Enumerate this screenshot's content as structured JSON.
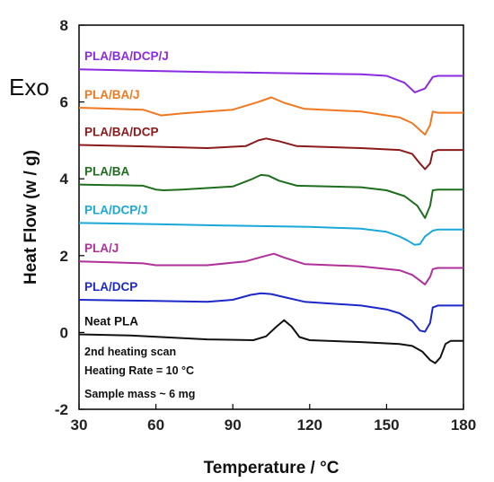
{
  "chart_data": {
    "type": "line",
    "xlabel": "Temperature / °C",
    "ylabel": "Heat Flow (w / g)",
    "xlim": [
      30,
      180
    ],
    "ylim": [
      -2,
      8
    ],
    "xticks": [
      "30",
      "60",
      "90",
      "120",
      "150",
      "180"
    ],
    "yticks": [
      "-2",
      "0",
      "2",
      "4",
      "6",
      "8"
    ],
    "grid": false,
    "exo_label": "Exo",
    "annotations": [
      "2nd heating scan",
      "Heating Rate = 10  °C",
      "Sample mass ~ 6 mg"
    ],
    "series": [
      {
        "name": "PLA/BA/DCP/J",
        "color": "#8a2be2",
        "x": [
          30,
          50,
          80,
          110,
          140,
          150,
          157,
          161,
          165,
          168,
          170,
          180
        ],
        "y": [
          6.85,
          6.82,
          6.78,
          6.75,
          6.72,
          6.68,
          6.5,
          6.25,
          6.35,
          6.65,
          6.68,
          6.68
        ]
      },
      {
        "name": "PLA/BA/J",
        "color": "#f07820",
        "x": [
          30,
          55,
          62,
          70,
          90,
          100,
          105,
          110,
          118,
          140,
          155,
          160,
          165,
          167,
          168,
          170,
          180
        ],
        "y": [
          5.85,
          5.8,
          5.65,
          5.7,
          5.8,
          6.0,
          6.12,
          5.98,
          5.82,
          5.75,
          5.6,
          5.45,
          5.15,
          5.4,
          5.75,
          5.72,
          5.72
        ]
      },
      {
        "name": "PLA/BA/DCP",
        "color": "#8b1a1a",
        "x": [
          30,
          50,
          80,
          95,
          100,
          103,
          108,
          115,
          140,
          155,
          160,
          163,
          165,
          167,
          168,
          170,
          180
        ],
        "y": [
          4.88,
          4.85,
          4.8,
          4.85,
          5.0,
          5.05,
          4.98,
          4.85,
          4.8,
          4.75,
          4.65,
          4.4,
          4.25,
          4.4,
          4.7,
          4.75,
          4.75
        ]
      },
      {
        "name": "PLA/BA",
        "color": "#1e6e1e",
        "x": [
          30,
          55,
          60,
          63,
          70,
          90,
          97,
          101,
          104,
          108,
          115,
          140,
          150,
          157,
          162,
          165,
          167,
          168,
          170,
          180
        ],
        "y": [
          3.85,
          3.82,
          3.72,
          3.7,
          3.72,
          3.8,
          3.98,
          4.1,
          4.08,
          3.95,
          3.82,
          3.78,
          3.7,
          3.55,
          3.3,
          2.98,
          3.3,
          3.7,
          3.72,
          3.72
        ]
      },
      {
        "name": "PLA/DCP/J",
        "color": "#1aa8d8",
        "x": [
          30,
          60,
          90,
          120,
          140,
          150,
          155,
          158,
          161,
          163,
          165,
          168,
          170,
          180
        ],
        "y": [
          2.85,
          2.82,
          2.78,
          2.75,
          2.7,
          2.62,
          2.5,
          2.4,
          2.28,
          2.3,
          2.5,
          2.65,
          2.68,
          2.68
        ]
      },
      {
        "name": "PLA/J",
        "color": "#b0309a",
        "x": [
          30,
          55,
          60,
          80,
          95,
          102,
          106,
          110,
          118,
          140,
          155,
          160,
          163,
          165,
          167,
          168,
          170,
          180
        ],
        "y": [
          1.85,
          1.8,
          1.75,
          1.75,
          1.85,
          1.98,
          2.05,
          1.95,
          1.78,
          1.72,
          1.62,
          1.5,
          1.35,
          1.25,
          1.45,
          1.65,
          1.68,
          1.68
        ]
      },
      {
        "name": "PLA/DCP",
        "color": "#1c28c8",
        "x": [
          30,
          60,
          80,
          90,
          97,
          101,
          105,
          110,
          118,
          140,
          150,
          155,
          160,
          163,
          165,
          167,
          168,
          170,
          180
        ],
        "y": [
          0.85,
          0.82,
          0.8,
          0.85,
          0.98,
          1.02,
          1.0,
          0.92,
          0.8,
          0.7,
          0.6,
          0.5,
          0.3,
          0.05,
          0.02,
          0.25,
          0.65,
          0.7,
          0.7
        ]
      },
      {
        "name": "Neat PLA",
        "color": "#111111",
        "x": [
          30,
          50,
          62,
          80,
          98,
          103,
          107,
          110,
          113,
          116,
          120,
          140,
          155,
          160,
          164,
          167,
          169,
          171,
          173,
          175,
          180
        ],
        "y": [
          -0.05,
          -0.08,
          -0.12,
          -0.18,
          -0.2,
          -0.1,
          0.15,
          0.32,
          0.15,
          -0.12,
          -0.2,
          -0.25,
          -0.3,
          -0.35,
          -0.5,
          -0.72,
          -0.8,
          -0.65,
          -0.3,
          -0.22,
          -0.22
        ]
      }
    ]
  }
}
